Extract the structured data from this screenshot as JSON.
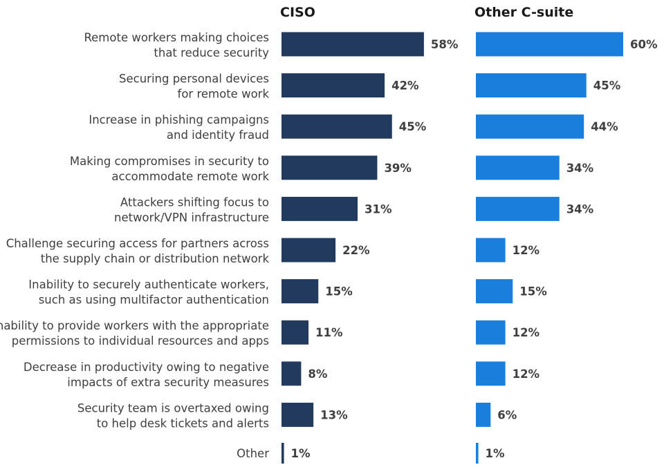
{
  "chart_data": {
    "type": "bar",
    "orientation": "horizontal",
    "unit": "%",
    "categories": [
      [
        "Remote workers making choices",
        "that reduce security"
      ],
      [
        "Securing personal devices",
        "for remote work"
      ],
      [
        "Increase in phishing campaigns",
        "and identity fraud"
      ],
      [
        "Making compromises in security to",
        "accommodate remote work"
      ],
      [
        "Attackers shifting focus to",
        "network/VPN infrastructure"
      ],
      [
        "Challenge securing access for partners across",
        "the supply chain or distribution network"
      ],
      [
        "Inability to securely authenticate workers,",
        "such as using multifactor authentication"
      ],
      [
        "Inability to provide workers with the appropriate",
        "permissions to individual resources and apps"
      ],
      [
        "Decrease in productivity owing to negative",
        "impacts of extra security measures"
      ],
      [
        "Security team is overtaxed owing",
        "to help desk tickets and alerts"
      ],
      [
        "Other"
      ]
    ],
    "series": [
      {
        "name": "CISO",
        "color": "#223a5e",
        "values": [
          58,
          42,
          45,
          39,
          31,
          22,
          15,
          11,
          8,
          13,
          1
        ],
        "labels": [
          "58%",
          "42%",
          "45%",
          "39%",
          "31%",
          "22%",
          "15%",
          "11%",
          "8%",
          "13%",
          "1%"
        ]
      },
      {
        "name": "Other C-suite",
        "color": "#1a7fdc",
        "values": [
          60,
          45,
          44,
          34,
          34,
          12,
          15,
          12,
          12,
          6,
          1
        ],
        "labels": [
          "60%",
          "45%",
          "44%",
          "34%",
          "34%",
          "12%",
          "15%",
          "12%",
          "12%",
          "6%",
          "1%"
        ]
      }
    ]
  }
}
